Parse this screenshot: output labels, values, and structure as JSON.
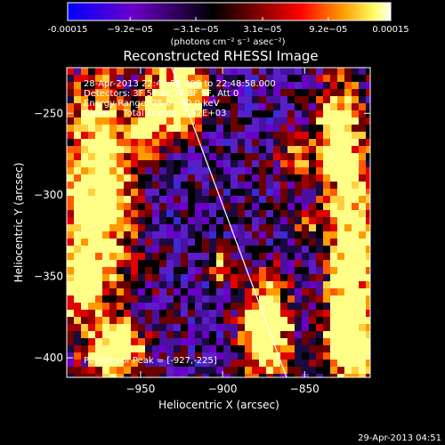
{
  "chart_data": {
    "type": "heatmap",
    "title": "Reconstructed RHESSI Image",
    "xlabel": "Heliocentric X (arcsec)",
    "ylabel": "Heliocentric Y (arcsec)",
    "xlim": [
      -995,
      -810
    ],
    "ylim": [
      -412,
      -222
    ],
    "x_ticks": [
      -950,
      -900,
      -850
    ],
    "x_tick_labels": [
      "−950",
      "−900",
      "−850"
    ],
    "y_ticks": [
      -250,
      -300,
      -350,
      -400
    ],
    "y_tick_labels": [
      "−250",
      "−300",
      "−350",
      "−400"
    ],
    "colorbar": {
      "range": [
        -0.00015,
        0.00015
      ],
      "ticks": [
        -0.00015,
        -9.2e-05,
        -3.1e-05,
        3.1e-05,
        9.2e-05,
        0.00015
      ],
      "tick_labels": [
        "-0.00015",
        "−9.2e−05",
        "−3.1e−05",
        "3.1e−05",
        "9.2e−05",
        "0.00015"
      ],
      "units_label": "(photons cm⁻² s⁻¹ asec⁻²)",
      "colors": [
        "#0000ff",
        "#6a00c8",
        "#000000",
        "#8b0000",
        "#ff0000",
        "#ff9a00",
        "#ffff66",
        "#ffffff"
      ]
    },
    "annotations": [
      "28-Apr-2013 22:42:58.000 to 22:48:58.000",
      "Detectors: 3F 5F 6F 7F 8F 9F, Att 0",
      "Energy Range: 25.0 - 50.0 keV",
      "Clean     Total counts: 7.52E+03"
    ],
    "peak_label": "Position of Peak = [-927,-225]",
    "peak": [
      -927,
      -225
    ],
    "limb_line": [
      [
        -931,
        -222
      ],
      [
        -861,
        -412
      ]
    ],
    "grid": false,
    "legend": "none"
  },
  "footer": {
    "timestamp": "29-Apr-2013 04:51"
  }
}
